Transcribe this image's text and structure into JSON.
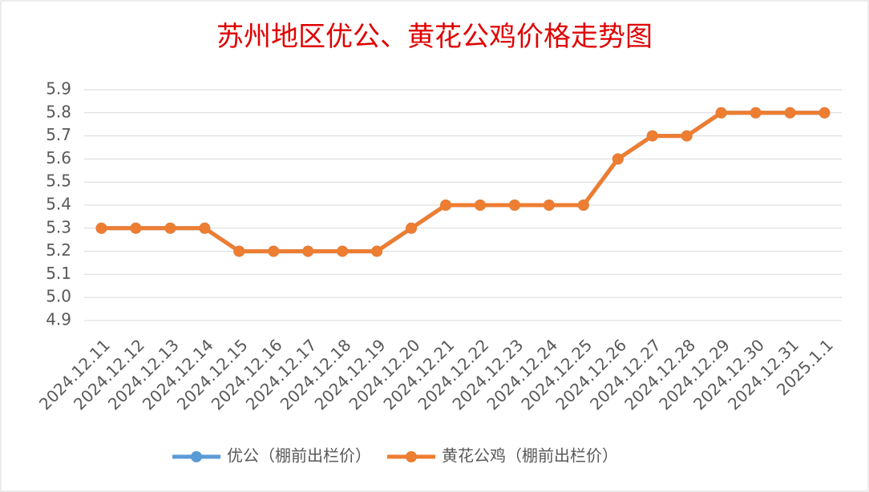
{
  "chart_data": {
    "type": "line",
    "title": "苏州地区优公、黄花公鸡价格走势图",
    "categories": [
      "2024.12.11",
      "2024.12.12",
      "2024.12.13",
      "2024.12.14",
      "2024.12.15",
      "2024.12.16",
      "2024.12.17",
      "2024.12.18",
      "2024.12.19",
      "2024.12.20",
      "2024.12.21",
      "2024.12.22",
      "2024.12.23",
      "2024.12.24",
      "2024.12.25",
      "2024.12.26",
      "2024.12.27",
      "2024.12.28",
      "2024.12.29",
      "2024.12.30",
      "2024.12.31",
      "2025.1.1"
    ],
    "series": [
      {
        "name": "优公（棚前出栏价）",
        "color": "#5b9bd5",
        "values": [
          5.3,
          5.3,
          5.3,
          5.3,
          5.2,
          5.2,
          5.2,
          5.2,
          5.2,
          5.3,
          5.4,
          5.4,
          5.4,
          5.4,
          5.4,
          5.6,
          5.7,
          5.7,
          5.8,
          5.8,
          5.8,
          5.8
        ]
      },
      {
        "name": "黄花公鸡（棚前出栏价）",
        "color": "#ed7d31",
        "values": [
          5.3,
          5.3,
          5.3,
          5.3,
          5.2,
          5.2,
          5.2,
          5.2,
          5.2,
          5.3,
          5.4,
          5.4,
          5.4,
          5.4,
          5.4,
          5.6,
          5.7,
          5.7,
          5.8,
          5.8,
          5.8,
          5.8
        ]
      }
    ],
    "ylim": [
      4.9,
      5.9
    ],
    "yticks": [
      4.9,
      {
        "value": 5,
        "label": "5.0"
      },
      5.1,
      5.2,
      5.3,
      5.4,
      5.5,
      5.6,
      5.7,
      5.8,
      5.9
    ],
    "grid": true,
    "legend": "bottom"
  }
}
